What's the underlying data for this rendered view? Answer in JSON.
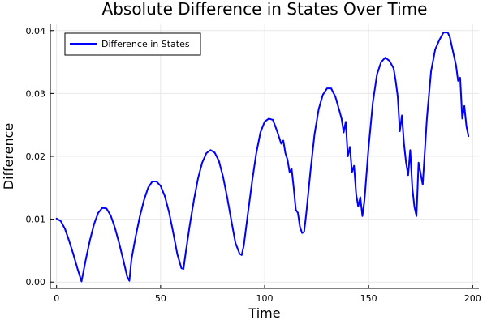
{
  "chart_data": {
    "type": "line",
    "title": "Absolute Difference in States Over Time",
    "xlabel": "Time",
    "ylabel": "Difference",
    "xlim": [
      -3,
      203
    ],
    "ylim": [
      -0.001,
      0.041
    ],
    "xticks": [
      0,
      50,
      100,
      150,
      200
    ],
    "yticks": [
      0.0,
      0.01,
      0.02,
      0.03,
      0.04
    ],
    "xtick_labels": [
      "0",
      "50",
      "100",
      "150",
      "200"
    ],
    "ytick_labels": [
      "0.00",
      "0.01",
      "0.02",
      "0.03",
      "0.04"
    ],
    "grid": true,
    "legend": {
      "position": "top-left",
      "entries": [
        "Difference in States"
      ]
    },
    "colors": {
      "series": "#0000ff"
    },
    "series": [
      {
        "name": "Difference in States",
        "x": [
          0,
          2,
          4,
          6,
          8,
          10,
          12,
          14,
          16,
          18,
          20,
          22,
          24,
          26,
          28,
          30,
          32,
          34,
          35,
          36,
          38,
          40,
          42,
          44,
          46,
          48,
          50,
          52,
          54,
          56,
          58,
          60,
          61,
          62,
          64,
          66,
          68,
          70,
          72,
          74,
          76,
          78,
          80,
          82,
          84,
          86,
          88,
          89,
          90,
          92,
          94,
          96,
          98,
          100,
          102,
          104,
          106,
          108,
          109,
          110,
          111,
          112,
          113,
          114,
          115,
          116,
          117,
          118,
          119,
          120,
          122,
          124,
          126,
          128,
          130,
          132,
          134,
          136,
          137,
          138,
          139,
          140,
          141,
          142,
          143,
          144,
          145,
          146,
          147,
          148,
          150,
          152,
          154,
          156,
          158,
          160,
          162,
          163,
          164,
          165,
          166,
          167,
          168,
          169,
          170,
          171,
          172,
          173,
          174,
          176,
          178,
          180,
          182,
          184,
          186,
          188,
          189,
          190,
          191,
          192,
          193,
          194,
          195,
          196,
          197,
          198
        ],
        "values": [
          0.0101,
          0.0097,
          0.0085,
          0.0066,
          0.0045,
          0.0022,
          0.0001,
          0.0035,
          0.0066,
          0.0092,
          0.011,
          0.0118,
          0.0117,
          0.0106,
          0.0087,
          0.0063,
          0.0036,
          0.0008,
          0.0002,
          0.0036,
          0.0072,
          0.0104,
          0.013,
          0.015,
          0.016,
          0.016,
          0.0153,
          0.0137,
          0.0112,
          0.008,
          0.0045,
          0.0022,
          0.0021,
          0.0045,
          0.009,
          0.013,
          0.0165,
          0.019,
          0.0205,
          0.021,
          0.0206,
          0.0193,
          0.0168,
          0.0135,
          0.0098,
          0.0062,
          0.0045,
          0.0043,
          0.0058,
          0.011,
          0.016,
          0.0205,
          0.0238,
          0.0255,
          0.026,
          0.0258,
          0.024,
          0.022,
          0.0225,
          0.0205,
          0.0195,
          0.0175,
          0.018,
          0.015,
          0.0115,
          0.011,
          0.0088,
          0.0078,
          0.008,
          0.0108,
          0.0175,
          0.0235,
          0.0275,
          0.0298,
          0.0308,
          0.0308,
          0.0295,
          0.0272,
          0.026,
          0.0238,
          0.0255,
          0.02,
          0.0215,
          0.0175,
          0.0185,
          0.014,
          0.012,
          0.0135,
          0.0105,
          0.013,
          0.0215,
          0.0285,
          0.033,
          0.035,
          0.0357,
          0.0352,
          0.034,
          0.032,
          0.0295,
          0.024,
          0.0265,
          0.022,
          0.019,
          0.017,
          0.021,
          0.015,
          0.012,
          0.0105,
          0.019,
          0.0155,
          0.026,
          0.0335,
          0.037,
          0.0385,
          0.0397,
          0.0397,
          0.039,
          0.0375,
          0.036,
          0.0345,
          0.032,
          0.0325,
          0.026,
          0.028,
          0.0248,
          0.0232
        ]
      }
    ]
  }
}
